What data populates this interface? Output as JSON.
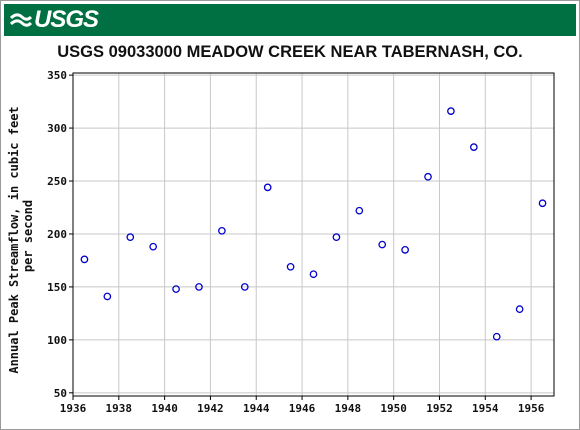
{
  "banner": {
    "logo_text": "USGS",
    "color": "#006f41"
  },
  "chart_data": {
    "type": "scatter",
    "title": "USGS 09033000 MEADOW CREEK NEAR TABERNASH, CO.",
    "xlabel": "",
    "ylabel_lines": [
      "Annual Peak Streamflow, in cubic feet",
      "per second"
    ],
    "xlim": [
      1936,
      1957
    ],
    "ylim": [
      47,
      352
    ],
    "x_ticks": [
      1936,
      1938,
      1940,
      1942,
      1944,
      1946,
      1948,
      1950,
      1952,
      1954,
      1956
    ],
    "y_ticks": [
      50,
      100,
      150,
      200,
      250,
      300,
      350
    ],
    "grid": true,
    "marker_color": "#0000cc",
    "points": [
      {
        "x": 1936.5,
        "y": 176
      },
      {
        "x": 1937.5,
        "y": 141
      },
      {
        "x": 1938.5,
        "y": 197
      },
      {
        "x": 1939.5,
        "y": 188
      },
      {
        "x": 1940.5,
        "y": 148
      },
      {
        "x": 1941.5,
        "y": 150
      },
      {
        "x": 1942.5,
        "y": 203
      },
      {
        "x": 1943.5,
        "y": 150
      },
      {
        "x": 1944.5,
        "y": 244
      },
      {
        "x": 1945.5,
        "y": 169
      },
      {
        "x": 1946.5,
        "y": 162
      },
      {
        "x": 1947.5,
        "y": 197
      },
      {
        "x": 1948.5,
        "y": 222
      },
      {
        "x": 1949.5,
        "y": 190
      },
      {
        "x": 1950.5,
        "y": 185
      },
      {
        "x": 1951.5,
        "y": 254
      },
      {
        "x": 1952.5,
        "y": 316
      },
      {
        "x": 1953.5,
        "y": 282
      },
      {
        "x": 1954.5,
        "y": 103
      },
      {
        "x": 1955.5,
        "y": 129
      },
      {
        "x": 1956.5,
        "y": 229
      }
    ]
  }
}
